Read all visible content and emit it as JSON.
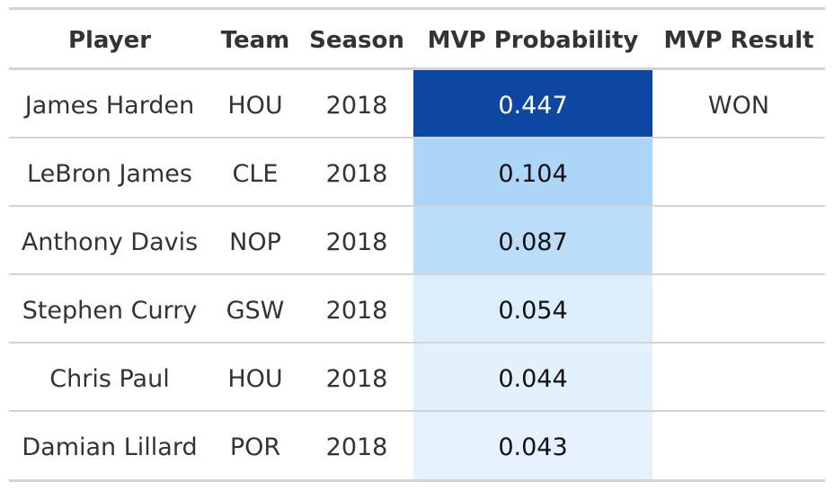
{
  "table": {
    "headers": {
      "player": "Player",
      "team": "Team",
      "season": "Season",
      "mvp_probability": "MVP Probability",
      "mvp_result": "MVP Result"
    },
    "rows": [
      {
        "player": "James Harden",
        "team": "HOU",
        "season": "2018",
        "mvp_probability": "0.447",
        "mvp_result": "WON",
        "fill_color": "#0d47a1",
        "text_color": "#ffffff"
      },
      {
        "player": "LeBron James",
        "team": "CLE",
        "season": "2018",
        "mvp_probability": "0.104",
        "mvp_result": "",
        "fill_color": "#acd5f8",
        "text_color": "#111111"
      },
      {
        "player": "Anthony Davis",
        "team": "NOP",
        "season": "2018",
        "mvp_probability": "0.087",
        "mvp_result": "",
        "fill_color": "#bcddf9",
        "text_color": "#111111"
      },
      {
        "player": "Stephen Curry",
        "team": "GSW",
        "season": "2018",
        "mvp_probability": "0.054",
        "mvp_result": "",
        "fill_color": "#dcedfc",
        "text_color": "#111111"
      },
      {
        "player": "Chris Paul",
        "team": "HOU",
        "season": "2018",
        "mvp_probability": "0.044",
        "mvp_result": "",
        "fill_color": "#e3f1fd",
        "text_color": "#111111"
      },
      {
        "player": "Damian Lillard",
        "team": "POR",
        "season": "2018",
        "mvp_probability": "0.043",
        "mvp_result": "",
        "fill_color": "#e5f2fd",
        "text_color": "#111111"
      }
    ]
  },
  "chart_data": {
    "type": "table",
    "columns": [
      "Player",
      "Team",
      "Season",
      "MVP Probability",
      "MVP Result"
    ],
    "rows": [
      [
        "James Harden",
        "HOU",
        2018,
        0.447,
        "WON"
      ],
      [
        "LeBron James",
        "CLE",
        2018,
        0.104,
        ""
      ],
      [
        "Anthony Davis",
        "NOP",
        2018,
        0.087,
        ""
      ],
      [
        "Stephen Curry",
        "GSW",
        2018,
        0.054,
        ""
      ],
      [
        "Chris Paul",
        "HOU",
        2018,
        0.044,
        ""
      ],
      [
        "Damian Lillard",
        "POR",
        2018,
        0.043,
        ""
      ]
    ],
    "color_scale": {
      "column": "MVP Probability",
      "low": "#e5f2fd",
      "high": "#0d47a1"
    }
  }
}
